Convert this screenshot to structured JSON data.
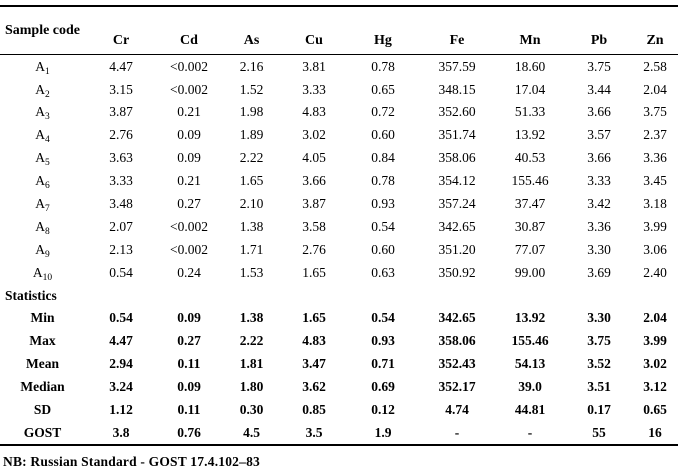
{
  "table": {
    "columns": [
      "Sample code",
      "Cr",
      "Cd",
      "As",
      "Cu",
      "Hg",
      "Fe",
      "Mn",
      "Pb",
      "Zn"
    ],
    "samples": [
      {
        "code_base": "A",
        "code_sub": "1",
        "values": [
          "4.47",
          "<0.002",
          "2.16",
          "3.81",
          "0.78",
          "357.59",
          "18.60",
          "3.75",
          "2.58"
        ]
      },
      {
        "code_base": "A",
        "code_sub": "2",
        "values": [
          "3.15",
          "<0.002",
          "1.52",
          "3.33",
          "0.65",
          "348.15",
          "17.04",
          "3.44",
          "2.04"
        ]
      },
      {
        "code_base": "A",
        "code_sub": "3",
        "values": [
          "3.87",
          "0.21",
          "1.98",
          "4.83",
          "0.72",
          "352.60",
          "51.33",
          "3.66",
          "3.75"
        ]
      },
      {
        "code_base": "A",
        "code_sub": "4",
        "values": [
          "2.76",
          "0.09",
          "1.89",
          "3.02",
          "0.60",
          "351.74",
          "13.92",
          "3.57",
          "2.37"
        ]
      },
      {
        "code_base": "A",
        "code_sub": "5",
        "values": [
          "3.63",
          "0.09",
          "2.22",
          "4.05",
          "0.84",
          "358.06",
          "40.53",
          "3.66",
          "3.36"
        ]
      },
      {
        "code_base": "A",
        "code_sub": "6",
        "values": [
          "3.33",
          "0.21",
          "1.65",
          "3.66",
          "0.78",
          "354.12",
          "155.46",
          "3.33",
          "3.45"
        ]
      },
      {
        "code_base": "A",
        "code_sub": "7",
        "values": [
          "3.48",
          "0.27",
          "2.10",
          "3.87",
          "0.93",
          "357.24",
          "37.47",
          "3.42",
          "3.18"
        ]
      },
      {
        "code_base": "A",
        "code_sub": "8",
        "values": [
          "2.07",
          "<0.002",
          "1.38",
          "3.58",
          "0.54",
          "342.65",
          "30.87",
          "3.36",
          "3.99"
        ]
      },
      {
        "code_base": "A",
        "code_sub": "9",
        "values": [
          "2.13",
          "<0.002",
          "1.71",
          "2.76",
          "0.60",
          "351.20",
          "77.07",
          "3.30",
          "3.06"
        ]
      },
      {
        "code_base": "A",
        "code_sub": "10",
        "values": [
          "0.54",
          "0.24",
          "1.53",
          "1.65",
          "0.63",
          "350.92",
          "99.00",
          "3.69",
          "2.40"
        ]
      }
    ],
    "statistics_header": "Statistics",
    "statistics": [
      {
        "label": "Min",
        "values": [
          "0.54",
          "0.09",
          "1.38",
          "1.65",
          "0.54",
          "342.65",
          "13.92",
          "3.30",
          "2.04"
        ]
      },
      {
        "label": "Max",
        "values": [
          "4.47",
          "0.27",
          "2.22",
          "4.83",
          "0.93",
          "358.06",
          "155.46",
          "3.75",
          "3.99"
        ]
      },
      {
        "label": "Mean",
        "values": [
          "2.94",
          "0.11",
          "1.81",
          "3.47",
          "0.71",
          "352.43",
          "54.13",
          "3.52",
          "3.02"
        ]
      },
      {
        "label": "Median",
        "values": [
          "3.24",
          "0.09",
          "1.80",
          "3.62",
          "0.69",
          "352.17",
          "39.0",
          "3.51",
          "3.12"
        ]
      },
      {
        "label": "SD",
        "values": [
          "1.12",
          "0.11",
          "0.30",
          "0.85",
          "0.12",
          "4.74",
          "44.81",
          "0.17",
          "0.65"
        ]
      },
      {
        "label": "GOST",
        "values": [
          "3.8",
          "0.76",
          "4.5",
          "3.5",
          "1.9",
          "-",
          "-",
          "55",
          "16"
        ]
      }
    ]
  },
  "footnote": "NB: Russian Standard - GOST 17.4.102–83"
}
